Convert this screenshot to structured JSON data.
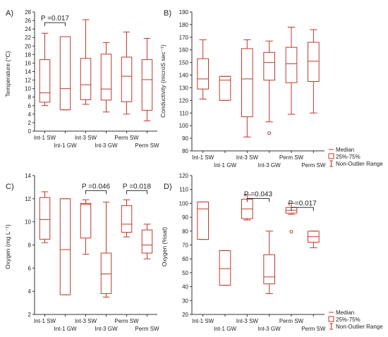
{
  "style": {
    "box_color": "#c0392b",
    "axis_color": "#333333",
    "text_color": "#222222"
  },
  "legend": {
    "median": "Median",
    "box": "25%-75%",
    "whisker": "Non-Outlier Range"
  },
  "chart_data": [
    {
      "type": "boxplot",
      "panel_label": "A)",
      "ylabel": "Temperature (°C)",
      "ylim": [
        0,
        28
      ],
      "yticks": [
        0,
        2,
        4,
        6,
        8,
        10,
        12,
        14,
        16,
        18,
        20,
        22,
        24,
        26,
        28
      ],
      "categories": [
        "Int-1 SW",
        "Int-1 GW",
        "Int-3 SW",
        "Int-3 GW",
        "Perm SW",
        "Perm SW"
      ],
      "boxes": [
        {
          "min": 6.0,
          "q1": 6.8,
          "median": 9.0,
          "q3": 16.8,
          "max": 23.0
        },
        {
          "min": 5.0,
          "q1": 5.0,
          "median": 10.0,
          "q3": 22.2,
          "max": 22.2
        },
        {
          "min": 6.3,
          "q1": 7.4,
          "median": 10.9,
          "q3": 17.1,
          "max": 26.2
        },
        {
          "min": 4.5,
          "q1": 7.3,
          "median": 9.9,
          "q3": 18.1,
          "max": 20.8
        },
        {
          "min": 4.0,
          "q1": 6.9,
          "median": 12.9,
          "q3": 17.4,
          "max": 23.3
        },
        {
          "min": 2.4,
          "q1": 4.9,
          "median": 12.1,
          "q3": 16.8,
          "max": 21.8
        }
      ],
      "outliers": [],
      "annotations": [
        {
          "text": "P =0.017",
          "from": 0,
          "to": 1,
          "y": 25.5
        }
      ]
    },
    {
      "type": "boxplot",
      "panel_label": "B)",
      "ylabel": "Conductivity (microS sec⁻¹)",
      "ylim": [
        80,
        190
      ],
      "yticks": [
        80,
        90,
        100,
        110,
        120,
        130,
        140,
        150,
        160,
        170,
        180,
        190
      ],
      "categories": [
        "Int-1 SW",
        "Int-1 GW",
        "Int-3 SW",
        "Int-3 GW",
        "Perm SW",
        "Perm SW"
      ],
      "boxes": [
        {
          "min": 121,
          "q1": 129,
          "median": 137,
          "q3": 153,
          "max": 168
        },
        {
          "min": 120,
          "q1": 120,
          "median": 136,
          "q3": 139,
          "max": 139
        },
        {
          "min": 91,
          "q1": 107,
          "median": 137,
          "q3": 161,
          "max": 168
        },
        {
          "min": 103,
          "q1": 136,
          "median": 150,
          "q3": 158,
          "max": 167
        },
        {
          "min": 109,
          "q1": 134,
          "median": 149,
          "q3": 162,
          "max": 178
        },
        {
          "min": 110,
          "q1": 135,
          "median": 151,
          "q3": 166,
          "max": 176
        }
      ],
      "outliers": [
        {
          "index": 3,
          "value": 94
        }
      ],
      "annotations": []
    },
    {
      "type": "boxplot",
      "panel_label": "C)",
      "ylabel": "Oxygen (mg L⁻¹)",
      "ylim": [
        2,
        14
      ],
      "yticks": [
        2,
        4,
        6,
        8,
        10,
        12,
        14
      ],
      "categories": [
        "Int-1 SW",
        "Int-1 GW",
        "Int-3 SW",
        "Int-3 GW",
        "Perm SW",
        "Perm SW"
      ],
      "boxes": [
        {
          "min": 8.2,
          "q1": 8.5,
          "median": 10.2,
          "q3": 12.1,
          "max": 12.6
        },
        {
          "min": 3.7,
          "q1": 3.7,
          "median": 7.6,
          "q3": 12.0,
          "max": 12.0
        },
        {
          "min": 7.2,
          "q1": 8.6,
          "median": 11.5,
          "q3": 11.6,
          "max": 11.9
        },
        {
          "min": 3.5,
          "q1": 3.8,
          "median": 5.5,
          "q3": 7.3,
          "max": 11.7
        },
        {
          "min": 8.7,
          "q1": 9.1,
          "median": 9.8,
          "q3": 11.4,
          "max": 11.9
        },
        {
          "min": 6.8,
          "q1": 7.3,
          "median": 8.0,
          "q3": 9.3,
          "max": 9.8
        }
      ],
      "outliers": [],
      "annotations": [
        {
          "text": "P =0.046",
          "from": 2,
          "to": 3,
          "y": 12.7
        },
        {
          "text": "P =0.018",
          "from": 4,
          "to": 5,
          "y": 12.7
        }
      ]
    },
    {
      "type": "boxplot",
      "panel_label": "D)",
      "ylabel": "Oxygen (%sat)",
      "ylim": [
        20,
        120
      ],
      "yticks": [
        20,
        30,
        40,
        50,
        60,
        70,
        80,
        90,
        100,
        110,
        120
      ],
      "categories": [
        "Int-1 SW",
        "Int-1 GW",
        "Int-3 SW",
        "Int-3 GW",
        "Perm SW",
        "Perm SW"
      ],
      "boxes": [
        {
          "min": 74,
          "q1": 74,
          "median": 96,
          "q3": 101,
          "max": 101
        },
        {
          "min": 41,
          "q1": 41,
          "median": 53,
          "q3": 66,
          "max": 66
        },
        {
          "min": 88,
          "q1": 89,
          "median": 96,
          "q3": 103,
          "max": 106
        },
        {
          "min": 35,
          "q1": 42,
          "median": 47,
          "q3": 63,
          "max": 80
        },
        {
          "min": 92,
          "q1": 93,
          "median": 95,
          "q3": 97,
          "max": 100
        },
        {
          "min": 68,
          "q1": 72,
          "median": 76,
          "q3": 80,
          "max": 80
        }
      ],
      "outliers": [
        {
          "index": 4,
          "value": 79.5
        }
      ],
      "annotations": [
        {
          "text": "P =0.043",
          "from": 2,
          "to": 3,
          "y": 103.5
        },
        {
          "text": "P =0.017",
          "from": 4,
          "to": 5,
          "y": 97
        }
      ]
    }
  ]
}
